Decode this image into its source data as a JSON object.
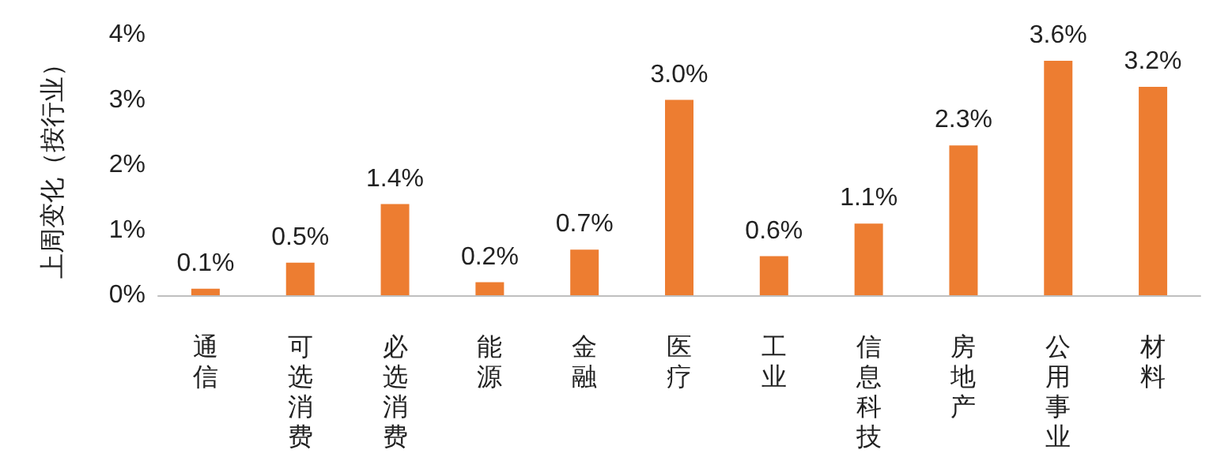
{
  "chart_data": {
    "type": "bar",
    "ylabel": "上周变化（按行业）",
    "categories": [
      "通信",
      "可选消费",
      "必选消费",
      "能源",
      "金融",
      "医疗",
      "工业",
      "信息科技",
      "房地产",
      "公用事业",
      "材料"
    ],
    "values": [
      0.1,
      0.5,
      1.4,
      0.2,
      0.7,
      3.0,
      0.6,
      1.1,
      2.3,
      3.6,
      3.2
    ],
    "value_labels": [
      "0.1%",
      "0.5%",
      "1.4%",
      "0.2%",
      "0.7%",
      "3.0%",
      "0.6%",
      "1.1%",
      "2.3%",
      "3.6%",
      "3.2%"
    ],
    "color": "#ed7d31",
    "ylim": [
      0,
      4
    ],
    "yticks": [
      {
        "value": 0,
        "label": "0%"
      },
      {
        "value": 1,
        "label": "1%"
      },
      {
        "value": 2,
        "label": "2%"
      },
      {
        "value": 3,
        "label": "3%"
      },
      {
        "value": 4,
        "label": "4%"
      }
    ],
    "grid": false
  }
}
